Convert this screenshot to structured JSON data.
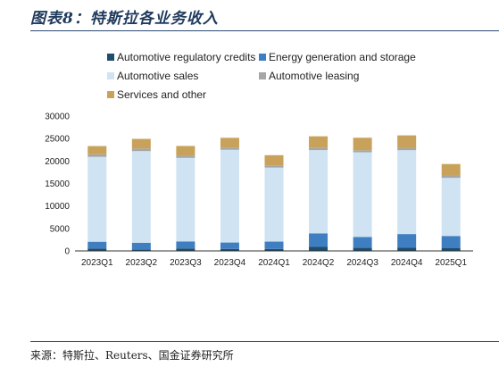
{
  "header": {
    "title": "图表8：特斯拉各业务收入"
  },
  "footer": {
    "source": "来源：特斯拉、Reuters、国金证券研究所"
  },
  "chart_data": {
    "type": "bar",
    "stacked": true,
    "title": "",
    "xlabel": "",
    "ylabel": "",
    "ylim": [
      0,
      30000
    ],
    "yticks": [
      0,
      5000,
      10000,
      15000,
      20000,
      25000,
      30000
    ],
    "grid": false,
    "legend_position": "top-left",
    "categories": [
      "2023Q1",
      "2023Q2",
      "2023Q3",
      "2023Q4",
      "2024Q1",
      "2024Q2",
      "2024Q3",
      "2024Q4",
      "2025Q1"
    ],
    "series": [
      {
        "name": "Automotive regulatory credits",
        "color": "#1d4e6e",
        "values": [
          521,
          282,
          554,
          433,
          442,
          890,
          739,
          692,
          595
        ]
      },
      {
        "name": "Energy generation and storage",
        "color": "#3f7fc1",
        "values": [
          1529,
          1509,
          1559,
          1438,
          1635,
          3014,
          2376,
          3061,
          2730
        ]
      },
      {
        "name": "Automotive sales",
        "color": "#cfe3f3",
        "values": [
          18878,
          20419,
          18582,
          20630,
          16460,
          18530,
          18831,
          18659,
          12925
        ]
      },
      {
        "name": "Automotive leasing",
        "color": "#a6a6a6",
        "values": [
          564,
          567,
          489,
          500,
          476,
          458,
          446,
          447,
          447
        ]
      },
      {
        "name": "Services and other",
        "color": "#c8a25a",
        "values": [
          1837,
          2150,
          2166,
          2166,
          2288,
          2608,
          2790,
          2848,
          2638
        ]
      }
    ]
  }
}
